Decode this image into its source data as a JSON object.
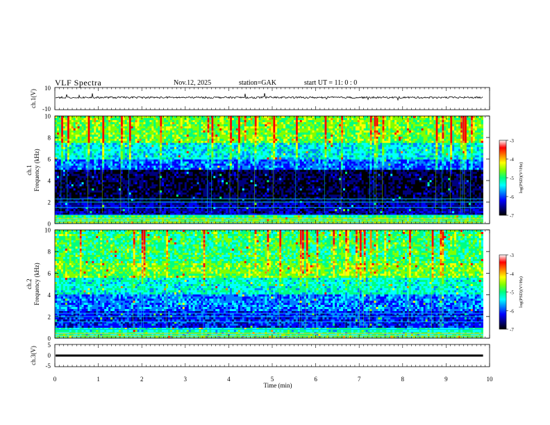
{
  "header": {
    "title": "VLF  Spectra",
    "date": "Nov.12, 2025",
    "station": "station=GAK",
    "start": "start  UT  =    11: 0   : 0"
  },
  "chart_data": {
    "type": "heatmap",
    "xlabel": "Time  (min)",
    "xlim": [
      0,
      10
    ],
    "xticks": [
      "0",
      "1",
      "2",
      "3",
      "4",
      "5",
      "6",
      "7",
      "8",
      "9",
      "10"
    ],
    "panels": {
      "ch1_waveform": {
        "ylabel": "ch.1(V)",
        "ylim": [
          -10,
          10
        ],
        "yticks": [
          "10",
          "-10"
        ],
        "baseline_v": 1,
        "data_end_min": 9.85
      },
      "ch1_spectrogram": {
        "ylabel": "Frequency  (kHz)",
        "ylabel_prefix": "ch.1",
        "ylim": [
          0,
          10
        ],
        "yticks": [
          "0",
          "2",
          "4",
          "6",
          "8",
          "10"
        ],
        "unit_hz": "kHz",
        "data_end_min": 9.85
      },
      "ch2_spectrogram": {
        "ylabel": "Frequency  (kHz)",
        "ylabel_prefix": "ch.2",
        "ylim": [
          0,
          10
        ],
        "yticks": [
          "0",
          "2",
          "4",
          "6",
          "8",
          "10"
        ],
        "data_end_min": 9.85
      },
      "ch3_waveform": {
        "ylabel": "ch.3(V)",
        "ylim": [
          -5,
          5
        ],
        "yticks": [
          "5",
          "0",
          "-5"
        ],
        "baseline_v": 0,
        "data_end_min": 9.85
      }
    },
    "colorbar": {
      "label": "log(PSD)(V²/Hz)",
      "range": [
        -7,
        -3
      ],
      "ticks": [
        "-3",
        "-4",
        "-5",
        "-6",
        "-7"
      ],
      "colors": [
        "#000000",
        "#00007f",
        "#0000ff",
        "#0080ff",
        "#00ffff",
        "#00ff80",
        "#80ff00",
        "#ffff00",
        "#ff8000",
        "#ff0000",
        "#ffffff"
      ]
    }
  }
}
